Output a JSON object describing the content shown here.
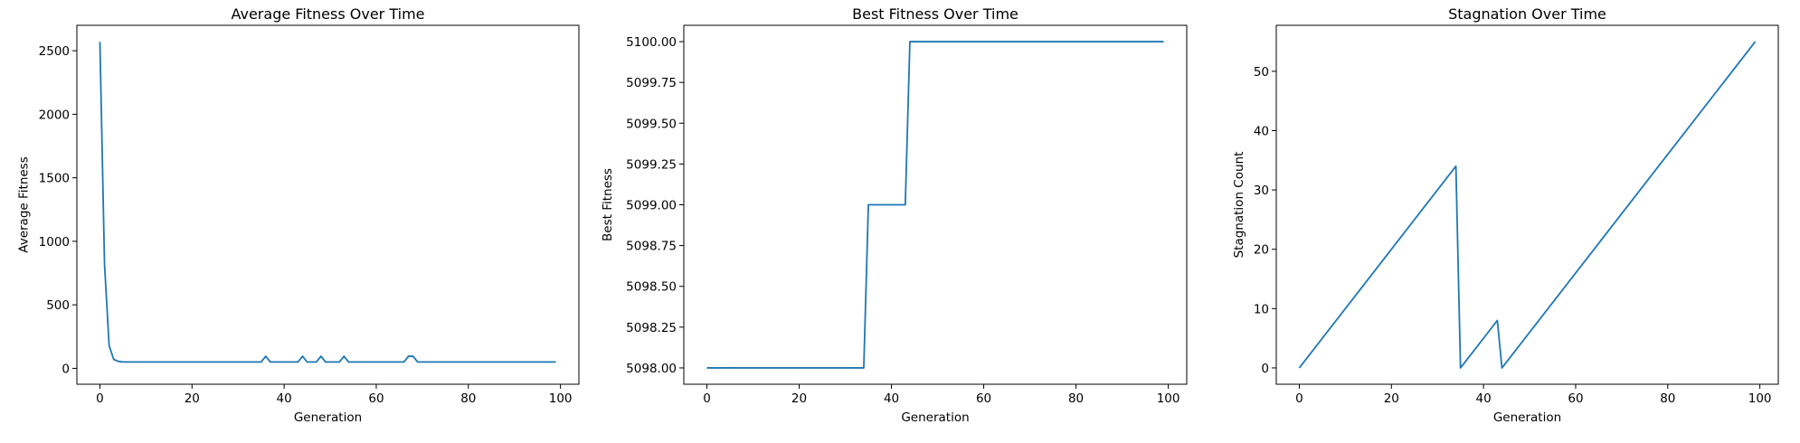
{
  "chart_data": [
    {
      "type": "line",
      "title": "Average Fitness Over Time",
      "xlabel": "Generation",
      "ylabel": "Average Fitness",
      "xlim": [
        -5,
        104
      ],
      "ylim": [
        -125,
        2700
      ],
      "xticks": [
        0,
        20,
        40,
        60,
        80,
        100
      ],
      "xtick_labels": [
        "0",
        "20",
        "40",
        "60",
        "80",
        "100"
      ],
      "yticks": [
        0,
        500,
        1000,
        1500,
        2000,
        2500
      ],
      "ytick_labels": [
        "0",
        "500",
        "1000",
        "1500",
        "2000",
        "2500"
      ],
      "grid": false,
      "color": "#1f77b4",
      "series": [
        {
          "points": [
            [
              0,
              2570
            ],
            [
              1,
              820
            ],
            [
              2,
              180
            ],
            [
              3,
              70
            ],
            [
              4,
              55
            ],
            [
              5,
              50
            ],
            [
              35,
              50
            ],
            [
              36,
              95
            ],
            [
              37,
              50
            ],
            [
              43,
              50
            ],
            [
              44,
              95
            ],
            [
              45,
              50
            ],
            [
              47,
              50
            ],
            [
              48,
              95
            ],
            [
              49,
              50
            ],
            [
              52,
              50
            ],
            [
              53,
              95
            ],
            [
              54,
              50
            ],
            [
              66,
              50
            ],
            [
              67,
              95
            ],
            [
              68,
              95
            ],
            [
              69,
              50
            ],
            [
              99,
              50
            ]
          ]
        }
      ]
    },
    {
      "type": "line",
      "title": "Best Fitness Over Time",
      "xlabel": "Generation",
      "ylabel": "Best Fitness",
      "xlim": [
        -5,
        104
      ],
      "ylim": [
        5097.9,
        5100.1
      ],
      "xticks": [
        0,
        20,
        40,
        60,
        80,
        100
      ],
      "xtick_labels": [
        "0",
        "20",
        "40",
        "60",
        "80",
        "100"
      ],
      "yticks": [
        5098.0,
        5098.25,
        5098.5,
        5098.75,
        5099.0,
        5099.25,
        5099.5,
        5099.75,
        5100.0
      ],
      "ytick_labels": [
        "5098.00",
        "5098.25",
        "5098.50",
        "5098.75",
        "5099.00",
        "5099.25",
        "5099.50",
        "5099.75",
        "5100.00"
      ],
      "grid": false,
      "color": "#1f77b4",
      "series": [
        {
          "points": [
            [
              0,
              5098
            ],
            [
              34,
              5098
            ],
            [
              35,
              5099
            ],
            [
              43,
              5099
            ],
            [
              44,
              5100
            ],
            [
              99,
              5100
            ]
          ]
        }
      ]
    },
    {
      "type": "line",
      "title": "Stagnation Over Time",
      "xlabel": "Generation",
      "ylabel": "Stagnation Count",
      "xlim": [
        -5,
        104
      ],
      "ylim": [
        -2.75,
        57.75
      ],
      "xticks": [
        0,
        20,
        40,
        60,
        80,
        100
      ],
      "xtick_labels": [
        "0",
        "20",
        "40",
        "60",
        "80",
        "100"
      ],
      "yticks": [
        0,
        10,
        20,
        30,
        40,
        50
      ],
      "ytick_labels": [
        "0",
        "10",
        "20",
        "30",
        "40",
        "50"
      ],
      "grid": false,
      "color": "#1f77b4",
      "series": [
        {
          "points": [
            [
              0,
              0
            ],
            [
              34,
              34
            ],
            [
              35,
              0
            ],
            [
              43,
              8
            ],
            [
              44,
              0
            ],
            [
              99,
              55
            ]
          ]
        }
      ]
    }
  ]
}
